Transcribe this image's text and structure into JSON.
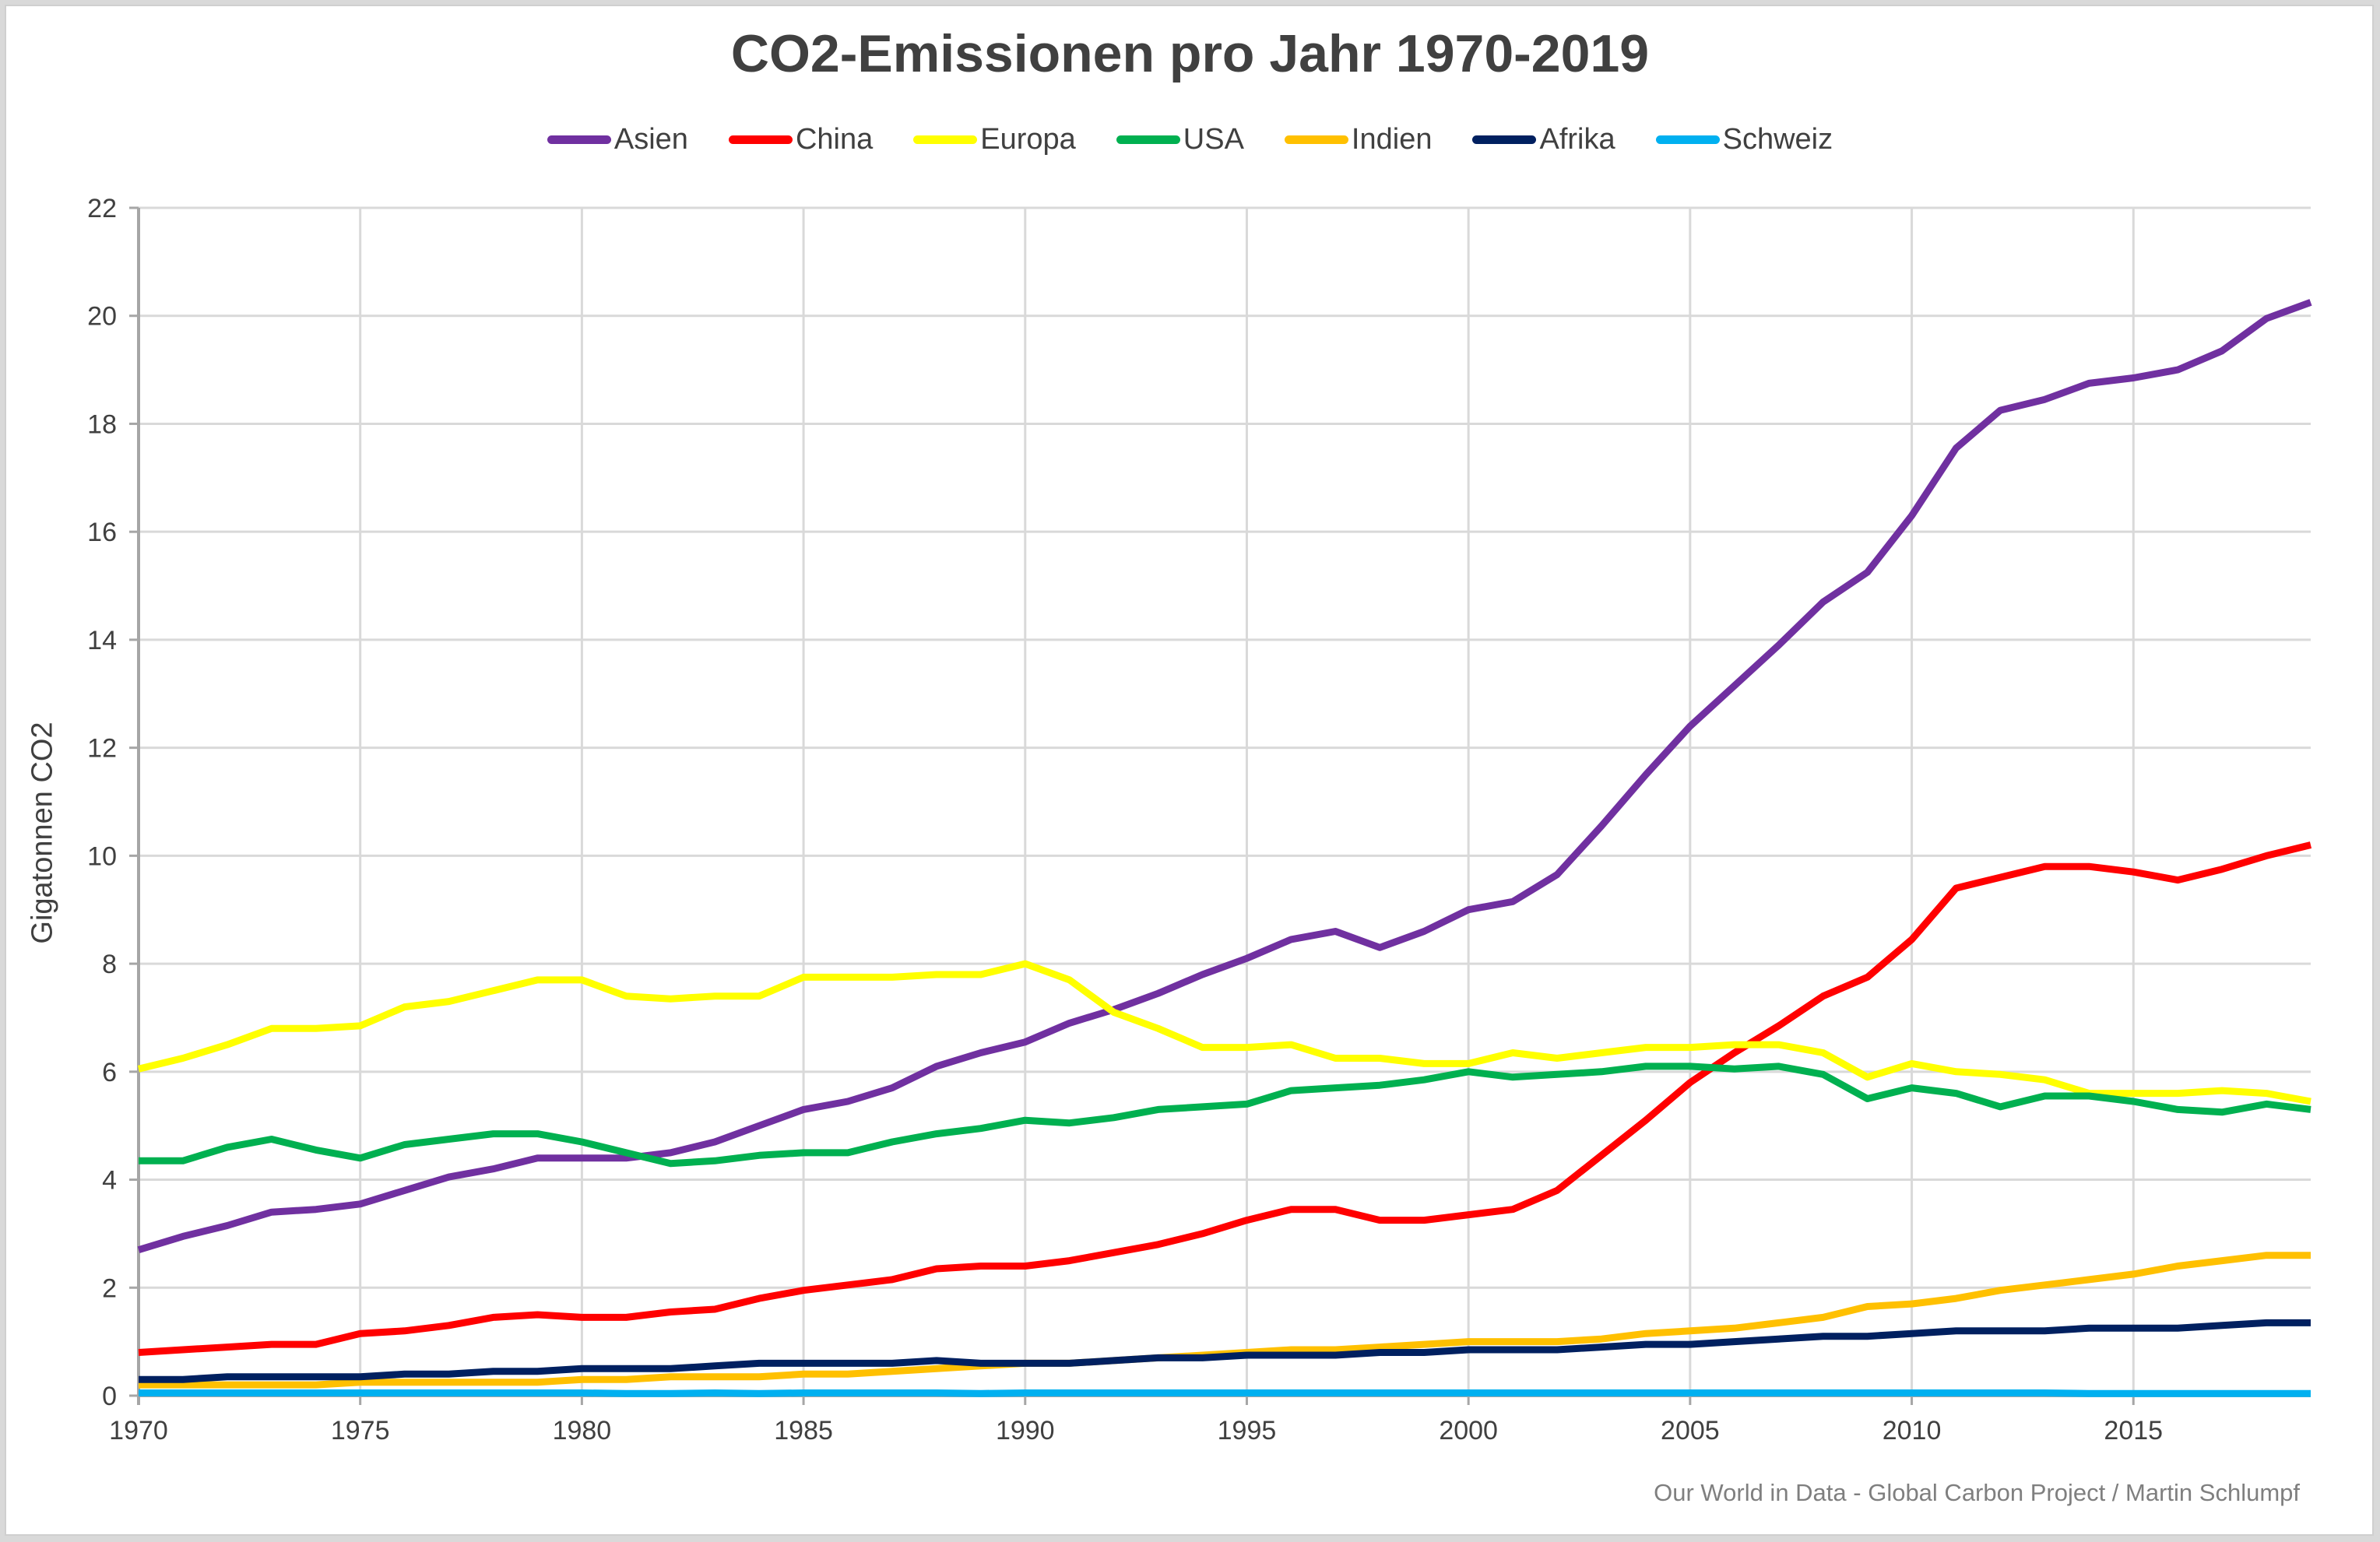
{
  "chart_data": {
    "type": "line",
    "title": "CO2-Emissionen pro Jahr  1970-2019",
    "xlabel": "",
    "ylabel": "Gigatonnen CO2",
    "xlim": [
      1970,
      2019
    ],
    "ylim": [
      0,
      22
    ],
    "grid": true,
    "legend_position": "top",
    "x_ticks": [
      1970,
      1975,
      1980,
      1985,
      1990,
      1995,
      2000,
      2005,
      2010,
      2015
    ],
    "y_ticks": [
      0,
      2,
      4,
      6,
      8,
      10,
      12,
      14,
      16,
      18,
      20,
      22
    ],
    "x": [
      1970,
      1971,
      1972,
      1973,
      1974,
      1975,
      1976,
      1977,
      1978,
      1979,
      1980,
      1981,
      1982,
      1983,
      1984,
      1985,
      1986,
      1987,
      1988,
      1989,
      1990,
      1991,
      1992,
      1993,
      1994,
      1995,
      1996,
      1997,
      1998,
      1999,
      2000,
      2001,
      2002,
      2003,
      2004,
      2005,
      2006,
      2007,
      2008,
      2009,
      2010,
      2011,
      2012,
      2013,
      2014,
      2015,
      2016,
      2017,
      2018,
      2019
    ],
    "series": [
      {
        "name": "Asien",
        "color": "#7030a0",
        "values": [
          2.7,
          2.95,
          3.15,
          3.4,
          3.45,
          3.55,
          3.8,
          4.05,
          4.2,
          4.4,
          4.4,
          4.4,
          4.5,
          4.7,
          5.0,
          5.3,
          5.45,
          5.7,
          6.1,
          6.35,
          6.55,
          6.9,
          7.15,
          7.45,
          7.8,
          8.1,
          8.45,
          8.6,
          8.3,
          8.6,
          9.0,
          9.15,
          9.65,
          10.55,
          11.5,
          12.4,
          13.15,
          13.9,
          14.7,
          15.25,
          16.3,
          17.55,
          18.25,
          18.45,
          18.75,
          18.85,
          19.0,
          19.35,
          19.95,
          20.25
        ]
      },
      {
        "name": "China",
        "color": "#ff0000",
        "values": [
          0.8,
          0.85,
          0.9,
          0.95,
          0.95,
          1.15,
          1.2,
          1.3,
          1.45,
          1.5,
          1.45,
          1.45,
          1.55,
          1.6,
          1.8,
          1.95,
          2.05,
          2.15,
          2.35,
          2.4,
          2.4,
          2.5,
          2.65,
          2.8,
          3.0,
          3.25,
          3.45,
          3.45,
          3.25,
          3.25,
          3.35,
          3.45,
          3.8,
          4.45,
          5.1,
          5.8,
          6.35,
          6.85,
          7.4,
          7.75,
          8.45,
          9.4,
          9.6,
          9.8,
          9.8,
          9.7,
          9.55,
          9.75,
          10.0,
          10.2
        ]
      },
      {
        "name": "Europa",
        "color": "#ffff00",
        "values": [
          6.05,
          6.25,
          6.5,
          6.8,
          6.8,
          6.85,
          7.2,
          7.3,
          7.5,
          7.7,
          7.7,
          7.4,
          7.35,
          7.4,
          7.4,
          7.75,
          7.75,
          7.75,
          7.8,
          7.8,
          8.0,
          7.7,
          7.1,
          6.8,
          6.45,
          6.45,
          6.5,
          6.25,
          6.25,
          6.15,
          6.15,
          6.35,
          6.25,
          6.35,
          6.45,
          6.45,
          6.5,
          6.5,
          6.35,
          5.9,
          6.15,
          6.0,
          5.95,
          5.85,
          5.6,
          5.6,
          5.6,
          5.65,
          5.6,
          5.45
        ]
      },
      {
        "name": "USA",
        "color": "#00b050",
        "values": [
          4.35,
          4.35,
          4.6,
          4.75,
          4.55,
          4.4,
          4.65,
          4.75,
          4.85,
          4.85,
          4.7,
          4.5,
          4.3,
          4.35,
          4.45,
          4.5,
          4.5,
          4.7,
          4.85,
          4.95,
          5.1,
          5.05,
          5.15,
          5.3,
          5.35,
          5.4,
          5.65,
          5.7,
          5.75,
          5.85,
          6.0,
          5.9,
          5.95,
          6.0,
          6.1,
          6.1,
          6.05,
          6.1,
          5.95,
          5.5,
          5.7,
          5.6,
          5.35,
          5.55,
          5.55,
          5.45,
          5.3,
          5.25,
          5.4,
          5.3
        ]
      },
      {
        "name": "Indien",
        "color": "#ffc000",
        "values": [
          0.2,
          0.2,
          0.2,
          0.2,
          0.2,
          0.25,
          0.25,
          0.25,
          0.25,
          0.25,
          0.3,
          0.3,
          0.35,
          0.35,
          0.35,
          0.4,
          0.4,
          0.45,
          0.5,
          0.55,
          0.6,
          0.6,
          0.65,
          0.7,
          0.75,
          0.8,
          0.85,
          0.85,
          0.9,
          0.95,
          1.0,
          1.0,
          1.0,
          1.05,
          1.15,
          1.2,
          1.25,
          1.35,
          1.45,
          1.65,
          1.7,
          1.8,
          1.95,
          2.05,
          2.15,
          2.25,
          2.4,
          2.5,
          2.6,
          2.6
        ]
      },
      {
        "name": "Afrika",
        "color": "#002060",
        "values": [
          0.3,
          0.3,
          0.35,
          0.35,
          0.35,
          0.35,
          0.4,
          0.4,
          0.45,
          0.45,
          0.5,
          0.5,
          0.5,
          0.55,
          0.6,
          0.6,
          0.6,
          0.6,
          0.65,
          0.6,
          0.6,
          0.6,
          0.65,
          0.7,
          0.7,
          0.75,
          0.75,
          0.75,
          0.8,
          0.8,
          0.85,
          0.85,
          0.85,
          0.9,
          0.95,
          0.95,
          1.0,
          1.05,
          1.1,
          1.1,
          1.15,
          1.2,
          1.2,
          1.2,
          1.25,
          1.25,
          1.25,
          1.3,
          1.35,
          1.35
        ]
      },
      {
        "name": "Schweiz",
        "color": "#00b0f0",
        "values": [
          0.05,
          0.05,
          0.05,
          0.05,
          0.05,
          0.05,
          0.05,
          0.05,
          0.05,
          0.05,
          0.05,
          0.04,
          0.04,
          0.05,
          0.04,
          0.05,
          0.05,
          0.05,
          0.05,
          0.04,
          0.05,
          0.05,
          0.05,
          0.05,
          0.05,
          0.05,
          0.05,
          0.05,
          0.05,
          0.05,
          0.05,
          0.05,
          0.05,
          0.05,
          0.05,
          0.05,
          0.05,
          0.05,
          0.05,
          0.05,
          0.05,
          0.05,
          0.05,
          0.05,
          0.04,
          0.04,
          0.04,
          0.04,
          0.04,
          0.04
        ]
      }
    ]
  },
  "footer": {
    "source": "Our World in Data - Global Carbon Project / Martin Schlumpf"
  }
}
